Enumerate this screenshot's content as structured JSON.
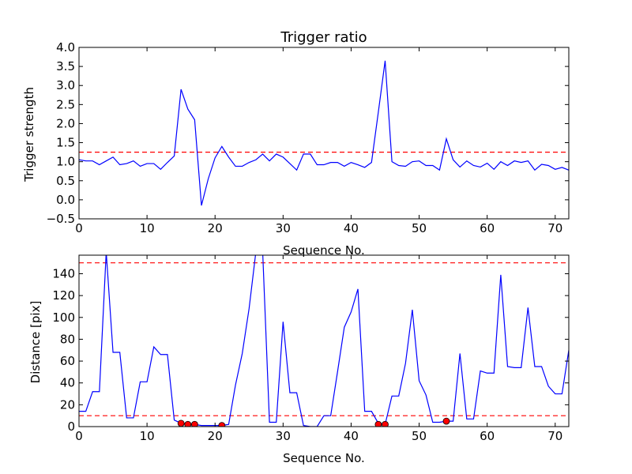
{
  "chart_data": [
    {
      "type": "line",
      "title": "Trigger ratio",
      "xlabel": "Sequence No.",
      "ylabel": "Trigger strength",
      "xlim": [
        0,
        72
      ],
      "ylim": [
        -0.5,
        4.0
      ],
      "xticks": [
        0,
        10,
        20,
        30,
        40,
        50,
        60,
        70
      ],
      "yticks": [
        -0.5,
        0.0,
        0.5,
        1.0,
        1.5,
        2.0,
        2.5,
        3.0,
        3.5,
        4.0
      ],
      "ytick_labels": [
        "−0.5",
        "0.0",
        "0.5",
        "1.0",
        "1.5",
        "2.0",
        "2.5",
        "3.0",
        "3.5",
        "4.0"
      ],
      "grid": false,
      "line_color": "#0000ff",
      "threshold_color": "#ff0000",
      "threshold": 1.25,
      "series": [
        {
          "x": [
            0,
            1,
            2,
            3,
            4,
            5,
            6,
            7,
            8,
            9,
            10,
            11,
            12,
            13,
            14,
            15,
            16,
            17,
            18,
            19,
            20,
            21,
            22,
            23,
            24,
            25,
            26,
            27,
            28,
            29,
            30,
            31,
            32,
            33,
            34,
            35,
            36,
            37,
            38,
            39,
            40,
            41,
            42,
            43,
            44,
            45,
            46,
            47,
            48,
            49,
            50,
            51,
            52,
            53,
            54,
            55,
            56,
            57,
            58,
            59,
            60,
            61,
            62,
            63,
            64,
            65,
            66,
            67,
            68,
            69,
            70,
            71,
            72
          ],
          "values": [
            1.05,
            1.02,
            1.02,
            0.92,
            1.02,
            1.12,
            0.92,
            0.95,
            1.02,
            0.88,
            0.95,
            0.95,
            0.8,
            0.98,
            1.15,
            2.9,
            2.38,
            2.1,
            -0.15,
            0.55,
            1.1,
            1.4,
            1.12,
            0.88,
            0.88,
            0.98,
            1.05,
            1.2,
            1.02,
            1.2,
            1.12,
            0.95,
            0.78,
            1.2,
            1.2,
            0.92,
            0.92,
            0.98,
            0.98,
            0.88,
            0.98,
            0.92,
            0.85,
            0.98,
            2.3,
            3.65,
            1.0,
            0.9,
            0.88,
            1.0,
            1.02,
            0.9,
            0.9,
            0.78,
            1.6,
            1.05,
            0.86,
            1.02,
            0.9,
            0.86,
            0.96,
            0.8,
            1.0,
            0.9,
            1.02,
            0.98,
            1.02,
            0.78,
            0.93,
            0.9,
            0.8,
            0.85,
            0.78
          ]
        }
      ]
    },
    {
      "type": "line",
      "title": "",
      "xlabel": "Sequence No.",
      "ylabel": "Distance [pix]",
      "xlim": [
        0,
        72
      ],
      "ylim": [
        0,
        157
      ],
      "xticks": [
        0,
        10,
        20,
        30,
        40,
        50,
        60,
        70
      ],
      "yticks": [
        0,
        20,
        40,
        60,
        80,
        100,
        120,
        140
      ],
      "grid": false,
      "line_color": "#0000ff",
      "threshold_color": "#ff0000",
      "marker_color": "#ff0000",
      "thresholds": [
        10,
        150
      ],
      "series": [
        {
          "x": [
            0,
            1,
            2,
            3,
            4,
            5,
            6,
            7,
            8,
            9,
            10,
            11,
            12,
            13,
            14,
            15,
            16,
            17,
            18,
            19,
            20,
            21,
            22,
            23,
            24,
            25,
            26,
            27,
            28,
            29,
            30,
            31,
            32,
            33,
            34,
            35,
            36,
            37,
            38,
            39,
            40,
            41,
            42,
            43,
            44,
            45,
            46,
            47,
            48,
            49,
            50,
            51,
            52,
            53,
            54,
            55,
            56,
            57,
            58,
            59,
            60,
            61,
            62,
            63,
            64,
            65,
            66,
            67,
            68,
            69,
            70,
            71,
            72
          ],
          "values": [
            14,
            14,
            32,
            32,
            160,
            68,
            68,
            8,
            8,
            41,
            41,
            73,
            66,
            66,
            6,
            3,
            2,
            2,
            1,
            1,
            1,
            1,
            2,
            38,
            67,
            108,
            160,
            160,
            4,
            4,
            96,
            31,
            31,
            1,
            0,
            0,
            10,
            10,
            50,
            91,
            105,
            126,
            14,
            14,
            3,
            2,
            28,
            28,
            58,
            107,
            42,
            29,
            4,
            4,
            5,
            5,
            67,
            7,
            7,
            51,
            49,
            49,
            139,
            55,
            54,
            54,
            109,
            55,
            55,
            37,
            30,
            30,
            70
          ]
        },
        {
          "name": "markers",
          "x": [
            15,
            16,
            17,
            21,
            44,
            45,
            54
          ],
          "values": [
            3,
            2,
            2,
            1,
            2,
            2,
            5
          ]
        }
      ]
    }
  ]
}
